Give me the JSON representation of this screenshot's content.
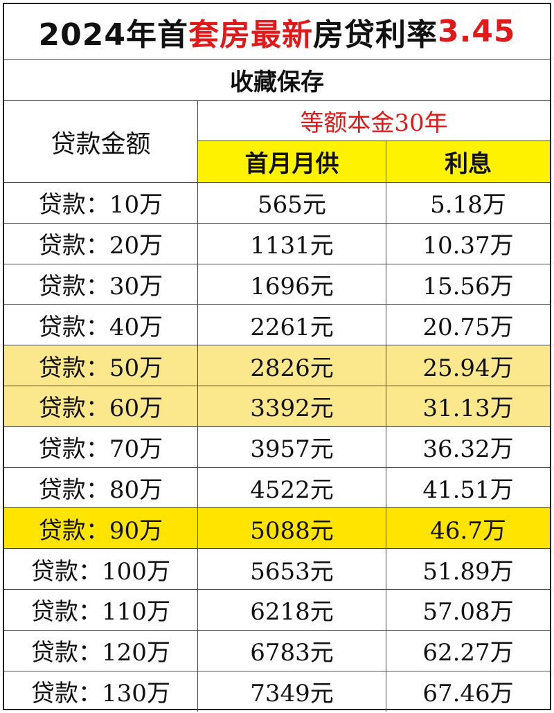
{
  "title": {
    "prefix": "2024年首",
    "highlight": "套房最新",
    "middle": "房贷利率",
    "rate": "3.45"
  },
  "subtitle": "收藏保存",
  "header": {
    "amount_label": "贷款金额",
    "method": "等额本金30年",
    "col_first_payment": "首月月供",
    "col_interest": "利息"
  },
  "colors": {
    "accent_red": "#e0191b",
    "header_yellow": "#fff200",
    "row_light_yellow": "#fbe78c",
    "row_strong_yellow": "#ffe400"
  },
  "rows": [
    {
      "amount": "贷款：10万",
      "first_payment": "565元",
      "interest": "5.18万",
      "highlight": "none"
    },
    {
      "amount": "贷款：20万",
      "first_payment": "1131元",
      "interest": "10.37万",
      "highlight": "none"
    },
    {
      "amount": "贷款：30万",
      "first_payment": "1696元",
      "interest": "15.56万",
      "highlight": "none"
    },
    {
      "amount": "贷款：40万",
      "first_payment": "2261元",
      "interest": "20.75万",
      "highlight": "none"
    },
    {
      "amount": "贷款：50万",
      "first_payment": "2826元",
      "interest": "25.94万",
      "highlight": "light"
    },
    {
      "amount": "贷款：60万",
      "first_payment": "3392元",
      "interest": "31.13万",
      "highlight": "light"
    },
    {
      "amount": "贷款：70万",
      "first_payment": "3957元",
      "interest": "36.32万",
      "highlight": "none"
    },
    {
      "amount": "贷款：80万",
      "first_payment": "4522元",
      "interest": "41.51万",
      "highlight": "none"
    },
    {
      "amount": "贷款：90万",
      "first_payment": "5088元",
      "interest": "46.7万",
      "highlight": "strong"
    },
    {
      "amount": "贷款：100万",
      "first_payment": "5653元",
      "interest": "51.89万",
      "highlight": "none"
    },
    {
      "amount": "贷款：110万",
      "first_payment": "6218元",
      "interest": "57.08万",
      "highlight": "none"
    },
    {
      "amount": "贷款：120万",
      "first_payment": "6783元",
      "interest": "62.27万",
      "highlight": "none"
    },
    {
      "amount": "贷款：130万",
      "first_payment": "7349元",
      "interest": "67.46万",
      "highlight": "none"
    }
  ]
}
